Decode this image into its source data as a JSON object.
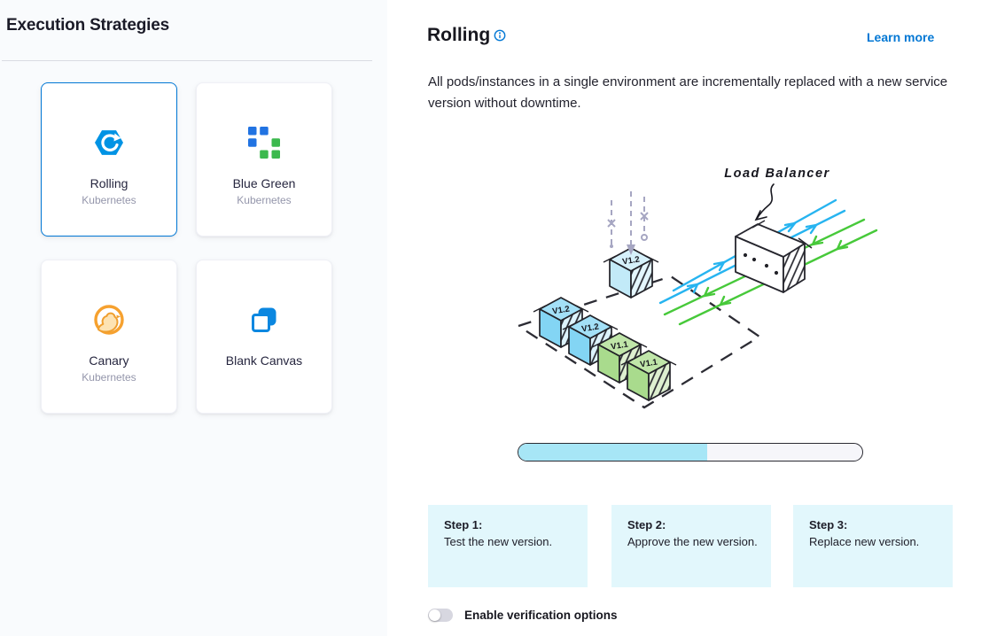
{
  "left_panel": {
    "title": "Execution Strategies",
    "strategies": [
      {
        "label": "Rolling",
        "sublabel": "Kubernetes",
        "icon": "rolling-icon",
        "selected": true
      },
      {
        "label": "Blue Green",
        "sublabel": "Kubernetes",
        "icon": "blue-green-icon",
        "selected": false
      },
      {
        "label": "Canary",
        "sublabel": "Kubernetes",
        "icon": "canary-icon",
        "selected": false
      },
      {
        "label": "Blank Canvas",
        "sublabel": "",
        "icon": "blank-canvas-icon",
        "selected": false
      }
    ]
  },
  "detail_panel": {
    "title": "Rolling",
    "learn_more_label": "Learn more",
    "description": "All pods/instances in a single environment are incrementally replaced with a new service version without downtime.",
    "diagram": {
      "load_balancer_label": "Load Balancer",
      "cubes": [
        "V1.2",
        "V1.2",
        "V1.1",
        "V1.1"
      ],
      "incoming_cube_label": "V1.2",
      "progress_percent": 55
    },
    "steps": [
      {
        "title": "Step 1:",
        "text": "Test the new version."
      },
      {
        "title": "Step 2:",
        "text": "Approve the new version."
      },
      {
        "title": "Step 3:",
        "text": "Replace new version."
      }
    ],
    "verification_toggle": {
      "label": "Enable verification options",
      "enabled": false
    }
  },
  "colors": {
    "accent": "#0278d5",
    "link": "#0277d4",
    "progress_fill": "#a7e6f6",
    "step_card_bg": "#e2f7fc",
    "flow_blue": "#27b4f0",
    "flow_green": "#47c93a"
  }
}
